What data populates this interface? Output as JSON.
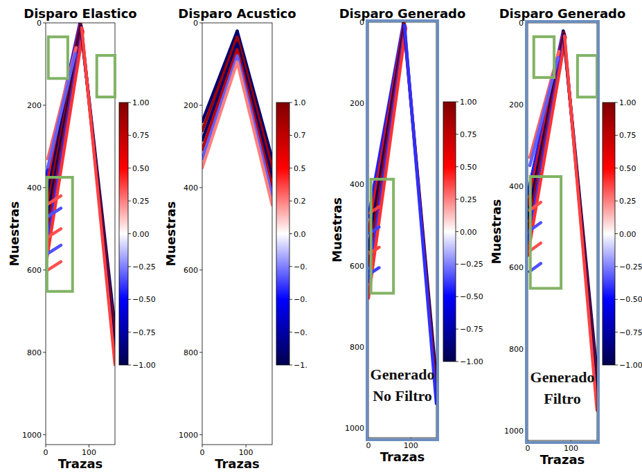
{
  "chart_data": [
    {
      "type": "heatmap",
      "title": "Disparo Elastico",
      "x_label": "Trazas",
      "y_label": "Muestras",
      "xlim": [
        0,
        160
      ],
      "xticks": [
        0,
        100
      ],
      "ylim": [
        1024,
        0
      ],
      "yticks": [
        0,
        200,
        400,
        600,
        800,
        1000
      ],
      "colorbar": {
        "range": [
          -1,
          1
        ],
        "ticks": [
          {
            "value": 1,
            "label": "1.00"
          },
          {
            "value": 0.75,
            "label": "0.75"
          },
          {
            "value": 0.5,
            "label": "0.50"
          },
          {
            "value": 0.25,
            "label": "0.25"
          },
          {
            "value": 0,
            "label": "0.00"
          },
          {
            "value": -0.25,
            "label": "−0.25"
          },
          {
            "value": -0.5,
            "label": "−0.50"
          },
          {
            "value": -0.75,
            "label": "−0.75"
          },
          {
            "value": -1,
            "label": "−1.00"
          }
        ]
      },
      "series": [
        {
          "x": [
            79,
            0
          ],
          "values": [
            0,
            380
          ],
          "color": "#1f1fff"
        },
        {
          "x": [
            80,
            0
          ],
          "values": [
            3,
            410
          ],
          "color": "#e01010"
        },
        {
          "x": [
            81,
            0
          ],
          "values": [
            6,
            440
          ],
          "color": "#00006e"
        },
        {
          "x": [
            82,
            0
          ],
          "values": [
            9,
            470
          ],
          "color": "#a00000"
        },
        {
          "x": [
            83,
            0
          ],
          "values": [
            12,
            500
          ],
          "color": "#00006e"
        },
        {
          "x": [
            84,
            0
          ],
          "values": [
            15,
            530
          ],
          "color": "#a00000"
        },
        {
          "x": [
            85,
            0
          ],
          "values": [
            18,
            560
          ],
          "color": "#3030ff"
        },
        {
          "x": [
            86,
            0
          ],
          "values": [
            21,
            590
          ],
          "color": "#ff3030"
        },
        {
          "x": [
            80,
            160
          ],
          "values": [
            0,
            740
          ],
          "color": "#00006e"
        },
        {
          "x": [
            81,
            160
          ],
          "values": [
            4,
            770
          ],
          "color": "#a00000"
        },
        {
          "x": [
            82,
            160
          ],
          "values": [
            8,
            800
          ],
          "color": "#00006e"
        },
        {
          "x": [
            83,
            160
          ],
          "values": [
            12,
            830
          ],
          "color": "#ff4040"
        },
        {
          "x": [
            70,
            5
          ],
          "values": [
            60,
            330
          ],
          "color": "#ff6060"
        },
        {
          "x": [
            68,
            5
          ],
          "values": [
            75,
            350
          ],
          "color": "#6060ff"
        },
        {
          "x": [
            5,
            35
          ],
          "values": [
            440,
            420
          ],
          "color": "#ff5050"
        },
        {
          "x": [
            5,
            35
          ],
          "values": [
            470,
            450
          ],
          "color": "#5050ff"
        },
        {
          "x": [
            5,
            35
          ],
          "values": [
            520,
            500
          ],
          "color": "#ff5050"
        },
        {
          "x": [
            5,
            35
          ],
          "values": [
            560,
            540
          ],
          "color": "#5050ff"
        },
        {
          "x": [
            5,
            35
          ],
          "values": [
            600,
            580
          ],
          "color": "#ff5050"
        }
      ],
      "boxes": [
        {
          "x": [
            6,
            51
          ],
          "y": [
            34,
            135
          ]
        },
        {
          "x": [
            118,
            160
          ],
          "y": [
            79,
            180
          ]
        },
        {
          "x": [
            3,
            62
          ],
          "y": [
            375,
            652
          ]
        }
      ]
    },
    {
      "type": "heatmap",
      "title": "Disparo Acustico",
      "x_label": "Trazas",
      "y_label": "Muestras",
      "xlim": [
        0,
        160
      ],
      "xticks": [
        0,
        100
      ],
      "ylim": [
        1024,
        0
      ],
      "yticks": [
        0,
        200,
        400,
        600,
        800,
        1000
      ],
      "colorbar": {
        "range": [
          -1,
          1
        ],
        "ticks": [
          {
            "value": 1,
            "label": "1.0"
          },
          {
            "value": 0.75,
            "label": "0.7"
          },
          {
            "value": 0.5,
            "label": "0.5"
          },
          {
            "value": 0.25,
            "label": "0.2"
          },
          {
            "value": 0,
            "label": "0.0"
          },
          {
            "value": -0.25,
            "label": "−0."
          },
          {
            "value": -0.5,
            "label": "−0."
          },
          {
            "value": -0.75,
            "label": "−0."
          },
          {
            "value": -1,
            "label": "−1."
          }
        ]
      },
      "series": [
        {
          "x": [
            80,
            0
          ],
          "values": [
            20,
            240
          ],
          "color": "#00006e"
        },
        {
          "x": [
            80,
            0
          ],
          "values": [
            35,
            262
          ],
          "color": "#a00000"
        },
        {
          "x": [
            80,
            0
          ],
          "values": [
            50,
            285
          ],
          "color": "#00006e"
        },
        {
          "x": [
            80,
            0
          ],
          "values": [
            65,
            308
          ],
          "color": "#c00000"
        },
        {
          "x": [
            80,
            0
          ],
          "values": [
            80,
            330
          ],
          "color": "#6060ff"
        },
        {
          "x": [
            80,
            0
          ],
          "values": [
            95,
            352
          ],
          "color": "#ff8080"
        },
        {
          "x": [
            80,
            160
          ],
          "values": [
            20,
            330
          ],
          "color": "#00006e"
        },
        {
          "x": [
            80,
            160
          ],
          "values": [
            35,
            352
          ],
          "color": "#a00000"
        },
        {
          "x": [
            80,
            160
          ],
          "values": [
            50,
            375
          ],
          "color": "#00006e"
        },
        {
          "x": [
            80,
            160
          ],
          "values": [
            65,
            398
          ],
          "color": "#c00000"
        },
        {
          "x": [
            80,
            160
          ],
          "values": [
            80,
            420
          ],
          "color": "#6060ff"
        },
        {
          "x": [
            80,
            160
          ],
          "values": [
            95,
            442
          ],
          "color": "#ff8080"
        }
      ],
      "boxes": []
    },
    {
      "type": "heatmap",
      "title": "Disparo Generado",
      "x_label": "Trazas",
      "y_label": "Muestras",
      "xlim": [
        0,
        160
      ],
      "xticks": [
        0,
        100
      ],
      "ylim": [
        1024,
        0
      ],
      "yticks": [
        0,
        200,
        400,
        600,
        800,
        1000
      ],
      "annotation": [
        "Generado",
        "No Filtro"
      ],
      "colorbar": {
        "range": [
          -1,
          1
        ],
        "ticks": [
          {
            "value": 1,
            "label": "1.00"
          },
          {
            "value": 0.75,
            "label": "0.75"
          },
          {
            "value": 0.5,
            "label": "0.50"
          },
          {
            "value": 0.25,
            "label": "0.25"
          },
          {
            "value": 0,
            "label": "0.00"
          },
          {
            "value": -0.25,
            "label": "−0.25"
          },
          {
            "value": -0.5,
            "label": "−0.50"
          },
          {
            "value": -0.75,
            "label": "−0.75"
          },
          {
            "value": -1,
            "label": "−1.00"
          }
        ]
      },
      "series": [
        {
          "x": [
            83,
            0
          ],
          "values": [
            0,
            480
          ],
          "color": "#1f1fff"
        },
        {
          "x": [
            84,
            0
          ],
          "values": [
            3,
            520
          ],
          "color": "#e01010"
        },
        {
          "x": [
            85,
            0
          ],
          "values": [
            6,
            560
          ],
          "color": "#00006e"
        },
        {
          "x": [
            86,
            0
          ],
          "values": [
            9,
            600
          ],
          "color": "#a00000"
        },
        {
          "x": [
            87,
            0
          ],
          "values": [
            12,
            640
          ],
          "color": "#3030ff"
        },
        {
          "x": [
            88,
            0
          ],
          "values": [
            15,
            680
          ],
          "color": "#ff3030"
        },
        {
          "x": [
            83,
            160
          ],
          "values": [
            0,
            880
          ],
          "color": "#00006e"
        },
        {
          "x": [
            84,
            160
          ],
          "values": [
            4,
            910
          ],
          "color": "#a00000"
        },
        {
          "x": [
            85,
            160
          ],
          "values": [
            8,
            940
          ],
          "color": "#3030ff"
        },
        {
          "x": [
            3,
            25
          ],
          "values": [
            470,
            455
          ],
          "color": "#ff4040"
        },
        {
          "x": [
            3,
            25
          ],
          "values": [
            520,
            505
          ],
          "color": "#4040ff"
        },
        {
          "x": [
            3,
            25
          ],
          "values": [
            570,
            555
          ],
          "color": "#ff4040"
        },
        {
          "x": [
            3,
            25
          ],
          "values": [
            620,
            605
          ],
          "color": "#4040ff"
        }
      ],
      "boxes": [
        {
          "x": [
            6,
            59
          ],
          "y": [
            387,
            668
          ]
        }
      ]
    },
    {
      "type": "heatmap",
      "title": "Disparo Generado",
      "x_label": "Trazas",
      "y_label": "Muestras",
      "xlim": [
        0,
        160
      ],
      "xticks": [
        0,
        100
      ],
      "ylim": [
        1024,
        0
      ],
      "yticks": [
        0,
        200,
        400,
        600,
        800,
        1000
      ],
      "annotation": [
        "Generado",
        "Filtro"
      ],
      "colorbar": {
        "range": [
          -1,
          1
        ],
        "ticks": [
          {
            "value": 1,
            "label": "1.00"
          },
          {
            "value": 0.75,
            "label": "0.75"
          },
          {
            "value": 0.5,
            "label": "0.50"
          },
          {
            "value": 0.25,
            "label": "0.25"
          },
          {
            "value": 0,
            "label": "0.00"
          },
          {
            "value": -0.25,
            "label": "−0.25"
          },
          {
            "value": -0.5,
            "label": "−0.50"
          },
          {
            "value": -0.75,
            "label": "−0.75"
          },
          {
            "value": -1,
            "label": "−1.00"
          }
        ]
      },
      "series": [
        {
          "x": [
            82,
            0
          ],
          "values": [
            20,
            420
          ],
          "color": "#1f1fff"
        },
        {
          "x": [
            83,
            0
          ],
          "values": [
            23,
            450
          ],
          "color": "#e01010"
        },
        {
          "x": [
            84,
            0
          ],
          "values": [
            26,
            480
          ],
          "color": "#00006e"
        },
        {
          "x": [
            85,
            0
          ],
          "values": [
            29,
            510
          ],
          "color": "#a00000"
        },
        {
          "x": [
            86,
            0
          ],
          "values": [
            32,
            540
          ],
          "color": "#3030ff"
        },
        {
          "x": [
            87,
            0
          ],
          "values": [
            35,
            570
          ],
          "color": "#ff3030"
        },
        {
          "x": [
            82,
            160
          ],
          "values": [
            20,
            860
          ],
          "color": "#00006e"
        },
        {
          "x": [
            83,
            160
          ],
          "values": [
            24,
            890
          ],
          "color": "#a00000"
        },
        {
          "x": [
            84,
            160
          ],
          "values": [
            28,
            920
          ],
          "color": "#00006e"
        },
        {
          "x": [
            85,
            160
          ],
          "values": [
            32,
            950
          ],
          "color": "#ff4040"
        },
        {
          "x": [
            72,
            5
          ],
          "values": [
            70,
            330
          ],
          "color": "#ff6060"
        },
        {
          "x": [
            70,
            5
          ],
          "values": [
            85,
            350
          ],
          "color": "#6060ff"
        },
        {
          "x": [
            4,
            30
          ],
          "values": [
            460,
            440
          ],
          "color": "#ff5050"
        },
        {
          "x": [
            4,
            30
          ],
          "values": [
            510,
            490
          ],
          "color": "#5050ff"
        },
        {
          "x": [
            4,
            30
          ],
          "values": [
            560,
            540
          ],
          "color": "#ff5050"
        },
        {
          "x": [
            4,
            30
          ],
          "values": [
            610,
            590
          ],
          "color": "#5050ff"
        }
      ],
      "boxes": [
        {
          "x": [
            14,
            61
          ],
          "y": [
            34,
            134
          ]
        },
        {
          "x": [
            115,
            160
          ],
          "y": [
            80,
            182
          ]
        },
        {
          "x": [
            6,
            77
          ],
          "y": [
            377,
            651
          ]
        }
      ]
    }
  ]
}
